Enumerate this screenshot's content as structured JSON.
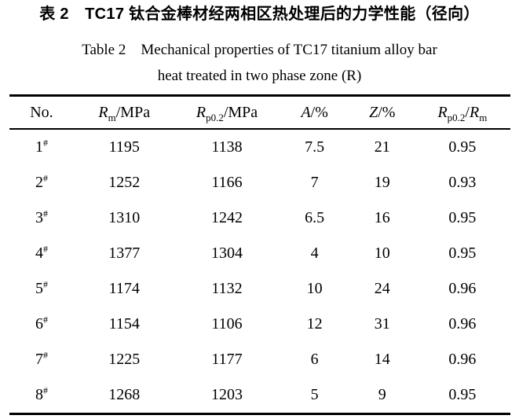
{
  "captions": {
    "chinese": "表 2　TC17 钛合金棒材经两相区热处理后的力学性能（径向）",
    "english_line1": "Table 2　Mechanical properties of TC17 titanium alloy bar",
    "english_line2": "heat treated in two phase zone (R)"
  },
  "colors": {
    "text": "#000000",
    "background": "#ffffff",
    "rule": "#000000"
  },
  "table": {
    "columns": [
      {
        "name": "no",
        "segments": [
          {
            "text": "No."
          }
        ]
      },
      {
        "name": "rm",
        "segments": [
          {
            "text": "R",
            "italic": true
          },
          {
            "text": "m",
            "sub": true
          },
          {
            "text": "/MPa"
          }
        ]
      },
      {
        "name": "rp02",
        "segments": [
          {
            "text": "R",
            "italic": true
          },
          {
            "text": "p0.2",
            "sub": true
          },
          {
            "text": "/MPa"
          }
        ]
      },
      {
        "name": "a",
        "segments": [
          {
            "text": "A",
            "italic": true
          },
          {
            "text": "/%"
          }
        ]
      },
      {
        "name": "z",
        "segments": [
          {
            "text": "Z",
            "italic": true
          },
          {
            "text": "/%"
          }
        ]
      },
      {
        "name": "ratio",
        "segments": [
          {
            "text": "R",
            "italic": true
          },
          {
            "text": "p0.2",
            "sub": true
          },
          {
            "text": "/"
          },
          {
            "text": "R",
            "italic": true
          },
          {
            "text": "m",
            "sub": true
          }
        ]
      }
    ],
    "rows": [
      {
        "no": "1",
        "no_marker": "#",
        "rm_mpa": "1195",
        "rp02_mpa": "1138",
        "a_pct": "7.5",
        "z_pct": "21",
        "ratio": "0.95"
      },
      {
        "no": "2",
        "no_marker": "#",
        "rm_mpa": "1252",
        "rp02_mpa": "1166",
        "a_pct": "7",
        "z_pct": "19",
        "ratio": "0.93"
      },
      {
        "no": "3",
        "no_marker": "#",
        "rm_mpa": "1310",
        "rp02_mpa": "1242",
        "a_pct": "6.5",
        "z_pct": "16",
        "ratio": "0.95"
      },
      {
        "no": "4",
        "no_marker": "#",
        "rm_mpa": "1377",
        "rp02_mpa": "1304",
        "a_pct": "4",
        "z_pct": "10",
        "ratio": "0.95"
      },
      {
        "no": "5",
        "no_marker": "#",
        "rm_mpa": "1174",
        "rp02_mpa": "1132",
        "a_pct": "10",
        "z_pct": "24",
        "ratio": "0.96"
      },
      {
        "no": "6",
        "no_marker": "#",
        "rm_mpa": "1154",
        "rp02_mpa": "1106",
        "a_pct": "12",
        "z_pct": "31",
        "ratio": "0.96"
      },
      {
        "no": "7",
        "no_marker": "#",
        "rm_mpa": "1225",
        "rp02_mpa": "1177",
        "a_pct": "6",
        "z_pct": "14",
        "ratio": "0.96"
      },
      {
        "no": "8",
        "no_marker": "#",
        "rm_mpa": "1268",
        "rp02_mpa": "1203",
        "a_pct": "5",
        "z_pct": "9",
        "ratio": "0.95"
      }
    ]
  },
  "chart_data": {
    "type": "table",
    "title": "Table 2 Mechanical properties of TC17 titanium alloy bar heat treated in two phase zone (R)",
    "title_chinese": "表 2 TC17 钛合金棒材经两相区热处理后的力学性能（径向）",
    "columns": [
      "No.",
      "Rm/MPa",
      "Rp0.2/MPa",
      "A/%",
      "Z/%",
      "Rp0.2/Rm"
    ],
    "rows": [
      [
        "1#",
        1195,
        1138,
        7.5,
        21,
        0.95
      ],
      [
        "2#",
        1252,
        1166,
        7,
        19,
        0.93
      ],
      [
        "3#",
        1310,
        1242,
        6.5,
        16,
        0.95
      ],
      [
        "4#",
        1377,
        1304,
        4,
        10,
        0.95
      ],
      [
        "5#",
        1174,
        1132,
        10,
        24,
        0.96
      ],
      [
        "6#",
        1154,
        1106,
        12,
        31,
        0.96
      ],
      [
        "7#",
        1225,
        1177,
        6,
        14,
        0.96
      ],
      [
        "8#",
        1268,
        1203,
        5,
        9,
        0.95
      ]
    ]
  }
}
